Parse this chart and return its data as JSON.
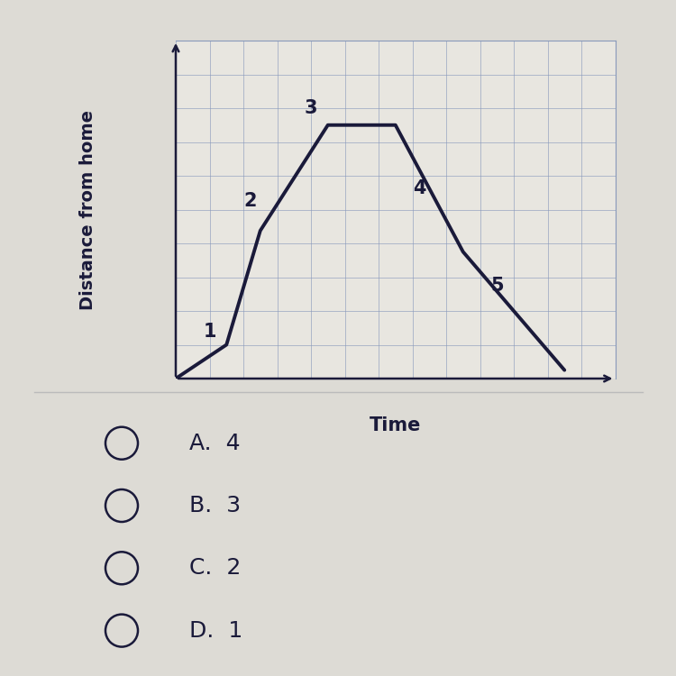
{
  "ylabel": "Distance from home",
  "xlabel": "Time",
  "background_color": "#dddbd5",
  "chart_bg_color": "#e8e6e0",
  "grid_color": "#8899bb",
  "line_color": "#1a1a3a",
  "line_width": 2.8,
  "x_points": [
    0,
    1.5,
    2.5,
    4.5,
    6.5,
    8.5,
    11.5
  ],
  "y_points": [
    0,
    0.8,
    3.5,
    6.0,
    6.0,
    3.0,
    0.2
  ],
  "label_positions": [
    [
      1.0,
      1.1,
      "1"
    ],
    [
      2.2,
      4.2,
      "2"
    ],
    [
      4.0,
      6.4,
      "3"
    ],
    [
      7.2,
      4.5,
      "4"
    ],
    [
      9.5,
      2.2,
      "5"
    ]
  ],
  "grid_nx": 14,
  "grid_ny": 11,
  "xlim": [
    0,
    13
  ],
  "ylim": [
    0,
    8
  ],
  "answer_choices": [
    "A.  4",
    "B.  3",
    "C.  2",
    "D.  1"
  ],
  "answer_fontsize": 18,
  "label_fontsize": 15,
  "axis_label_fontsize": 14,
  "divider_color": "#bbbbbb"
}
